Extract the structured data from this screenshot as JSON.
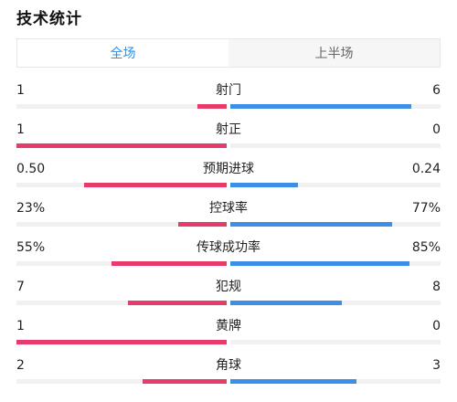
{
  "header": {
    "title": "技术统计"
  },
  "tabs": [
    {
      "label": "全场",
      "active": true
    },
    {
      "label": "上半场",
      "active": false
    }
  ],
  "colors": {
    "home": "#e63b6b",
    "away": "#3d8ee8",
    "tab_active": "#2f8ee6"
  },
  "stats": [
    {
      "label": "射门",
      "left": "1",
      "right": "6",
      "left_frac": 0.14,
      "right_frac": 0.86
    },
    {
      "label": "射正",
      "left": "1",
      "right": "0",
      "left_frac": 1.0,
      "right_frac": 0.0
    },
    {
      "label": "预期进球",
      "left": "0.50",
      "right": "0.24",
      "left_frac": 0.68,
      "right_frac": 0.32
    },
    {
      "label": "控球率",
      "left": "23%",
      "right": "77%",
      "left_frac": 0.23,
      "right_frac": 0.77
    },
    {
      "label": "传球成功率",
      "left": "55%",
      "right": "85%",
      "left_frac": 0.55,
      "right_frac": 0.85
    },
    {
      "label": "犯规",
      "left": "7",
      "right": "8",
      "left_frac": 0.47,
      "right_frac": 0.53
    },
    {
      "label": "黄牌",
      "left": "1",
      "right": "0",
      "left_frac": 1.0,
      "right_frac": 0.0
    },
    {
      "label": "角球",
      "left": "2",
      "right": "3",
      "left_frac": 0.4,
      "right_frac": 0.6
    }
  ]
}
